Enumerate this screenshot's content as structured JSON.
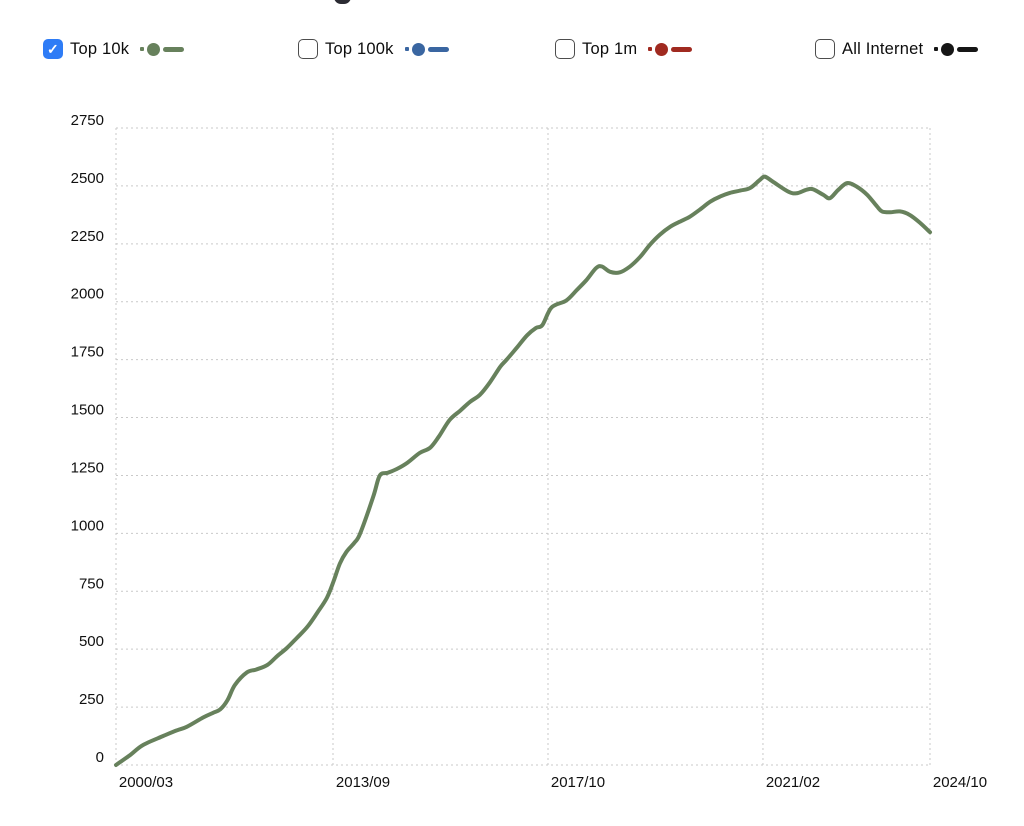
{
  "legend": {
    "check_glyph": "✓",
    "checkbox_checked_color": "#2e7cf6",
    "items": [
      {
        "label": "Top 10k",
        "checked": true,
        "color": "#67815c"
      },
      {
        "label": "Top 100k",
        "checked": false,
        "color": "#3a66a1"
      },
      {
        "label": "Top 1m",
        "checked": false,
        "color": "#a02a20"
      },
      {
        "label": "All Internet",
        "checked": false,
        "color": "#161616"
      }
    ]
  },
  "chart_data": {
    "type": "line",
    "title": "",
    "xlabel": "",
    "ylabel": "",
    "grid": "dashed",
    "legend_position": "top",
    "ylim": [
      0,
      2750
    ],
    "y_ticks": [
      0,
      250,
      500,
      750,
      1000,
      1250,
      1500,
      1750,
      2000,
      2250,
      2500,
      2750
    ],
    "x_tick_labels": [
      "2000/03",
      "2013/09",
      "2017/10",
      "2021/02",
      "2024/10"
    ],
    "x_tick_positions": [
      0,
      0.2666,
      0.5307,
      0.7948,
      1
    ],
    "series": [
      {
        "name": "Top 10k",
        "color": "#67815c",
        "visible": true,
        "points": [
          [
            0,
            0
          ],
          [
            0.018,
            45
          ],
          [
            0.033,
            86
          ],
          [
            0.058,
            125
          ],
          [
            0.075,
            150
          ],
          [
            0.087,
            165
          ],
          [
            0.107,
            205
          ],
          [
            0.119,
            225
          ],
          [
            0.128,
            240
          ],
          [
            0.137,
            280
          ],
          [
            0.146,
            345
          ],
          [
            0.161,
            400
          ],
          [
            0.172,
            412
          ],
          [
            0.186,
            432
          ],
          [
            0.198,
            470
          ],
          [
            0.21,
            505
          ],
          [
            0.222,
            548
          ],
          [
            0.235,
            596
          ],
          [
            0.247,
            656
          ],
          [
            0.259,
            721
          ],
          [
            0.267,
            790
          ],
          [
            0.275,
            870
          ],
          [
            0.283,
            920
          ],
          [
            0.293,
            960
          ],
          [
            0.3,
            1000
          ],
          [
            0.316,
            1158
          ],
          [
            0.324,
            1249
          ],
          [
            0.334,
            1262
          ],
          [
            0.345,
            1278
          ],
          [
            0.358,
            1305
          ],
          [
            0.373,
            1347
          ],
          [
            0.386,
            1370
          ],
          [
            0.397,
            1420
          ],
          [
            0.41,
            1490
          ],
          [
            0.423,
            1530
          ],
          [
            0.435,
            1568
          ],
          [
            0.447,
            1598
          ],
          [
            0.459,
            1650
          ],
          [
            0.472,
            1719
          ],
          [
            0.48,
            1750
          ],
          [
            0.492,
            1800
          ],
          [
            0.505,
            1855
          ],
          [
            0.516,
            1887
          ],
          [
            0.524,
            1900
          ],
          [
            0.535,
            1975
          ],
          [
            0.553,
            2005
          ],
          [
            0.566,
            2050
          ],
          [
            0.578,
            2094
          ],
          [
            0.59,
            2146
          ],
          [
            0.597,
            2152
          ],
          [
            0.607,
            2129
          ],
          [
            0.619,
            2127
          ],
          [
            0.631,
            2151
          ],
          [
            0.644,
            2194
          ],
          [
            0.656,
            2246
          ],
          [
            0.668,
            2289
          ],
          [
            0.681,
            2324
          ],
          [
            0.693,
            2346
          ],
          [
            0.705,
            2367
          ],
          [
            0.717,
            2397
          ],
          [
            0.73,
            2432
          ],
          [
            0.742,
            2454
          ],
          [
            0.754,
            2470
          ],
          [
            0.767,
            2480
          ],
          [
            0.779,
            2491
          ],
          [
            0.791,
            2526
          ],
          [
            0.797,
            2540
          ],
          [
            0.807,
            2518
          ],
          [
            0.826,
            2475
          ],
          [
            0.836,
            2468
          ],
          [
            0.848,
            2483
          ],
          [
            0.856,
            2486
          ],
          [
            0.869,
            2461
          ],
          [
            0.877,
            2447
          ],
          [
            0.887,
            2482
          ],
          [
            0.898,
            2512
          ],
          [
            0.91,
            2497
          ],
          [
            0.923,
            2461
          ],
          [
            0.935,
            2411
          ],
          [
            0.941,
            2390
          ],
          [
            0.951,
            2386
          ],
          [
            0.963,
            2390
          ],
          [
            0.975,
            2375
          ],
          [
            0.988,
            2340
          ],
          [
            1,
            2300
          ]
        ]
      },
      {
        "name": "Top 100k",
        "color": "#3a66a1",
        "visible": false,
        "points": []
      },
      {
        "name": "Top 1m",
        "color": "#a02a20",
        "visible": false,
        "points": []
      },
      {
        "name": "All Internet",
        "color": "#161616",
        "visible": false,
        "points": []
      }
    ]
  }
}
